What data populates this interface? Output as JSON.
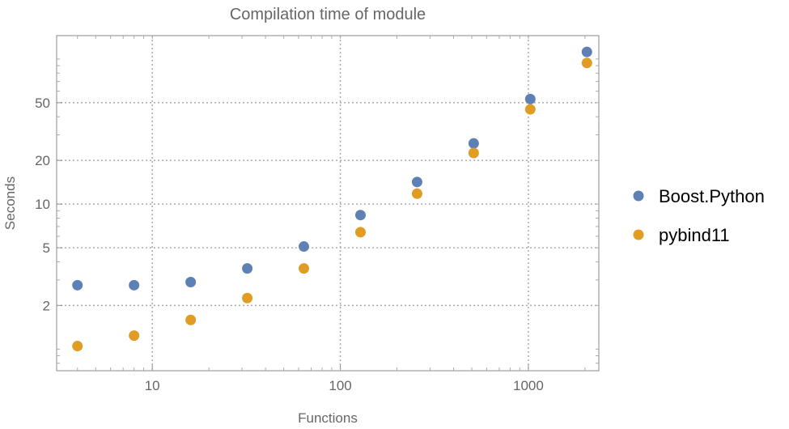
{
  "chart_data": {
    "type": "scatter",
    "title": "Compilation time of module",
    "xlabel": "Functions",
    "ylabel": "Seconds",
    "xscale": "log",
    "yscale": "log",
    "xlim": [
      3.1,
      2370
    ],
    "ylim": [
      0.71,
      145
    ],
    "x_ticks": [
      10,
      100,
      1000
    ],
    "x_tick_labels": [
      "10",
      "100",
      "1000"
    ],
    "y_ticks": [
      2,
      5,
      10,
      20,
      50
    ],
    "y_tick_labels": [
      "2",
      "5",
      "10",
      "20",
      "50"
    ],
    "grid": true,
    "legend_position": "right",
    "x": [
      4,
      8,
      16,
      32,
      64,
      128,
      256,
      512,
      1024,
      2048
    ],
    "series": [
      {
        "name": "Boost.Python",
        "color": "#5E81B5",
        "values": [
          2.76,
          2.76,
          2.9,
          3.6,
          5.1,
          8.4,
          14.2,
          26.2,
          53,
          112
        ]
      },
      {
        "name": "pybind11",
        "color": "#E19C24",
        "values": [
          1.05,
          1.24,
          1.59,
          2.25,
          3.6,
          6.4,
          11.8,
          22.5,
          45,
          94
        ]
      }
    ]
  }
}
